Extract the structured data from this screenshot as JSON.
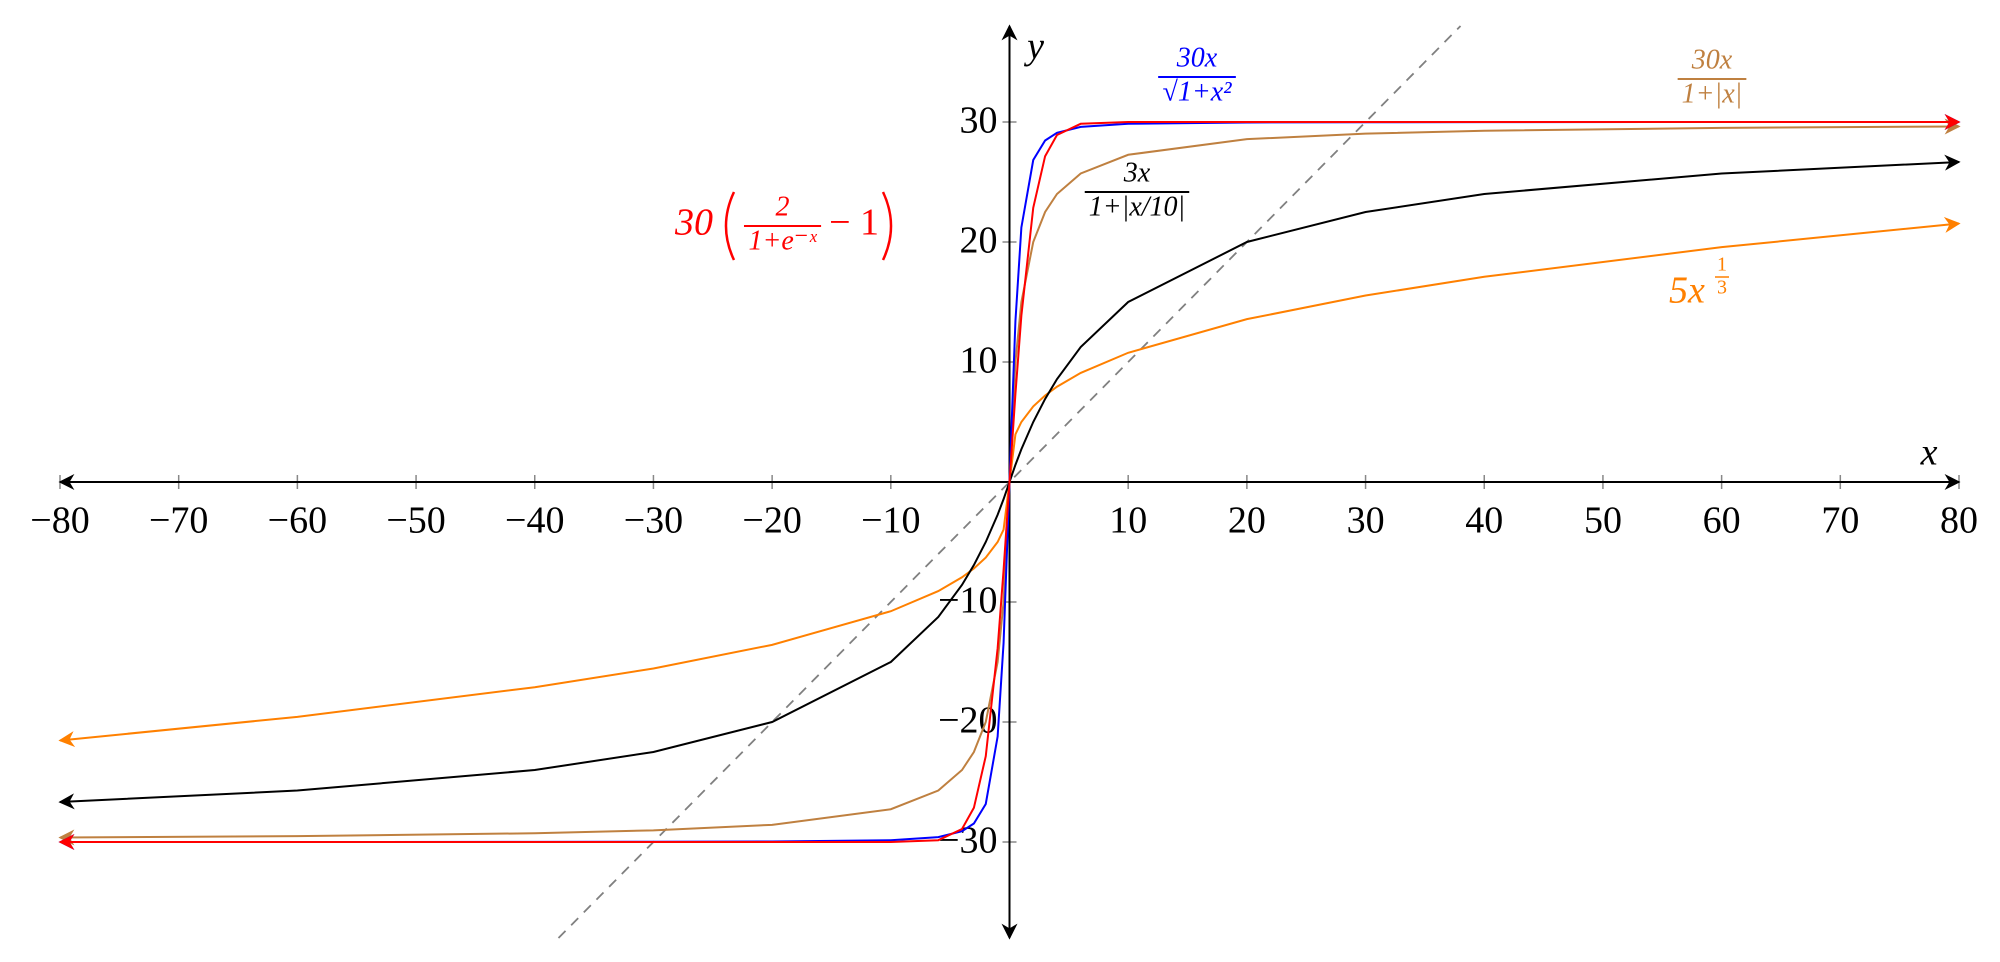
{
  "chart_data": {
    "type": "line",
    "x_label": "x",
    "y_label": "y",
    "xlim": [
      -80,
      80
    ],
    "ylim": [
      -38,
      38
    ],
    "xticks": [
      {
        "value": -80,
        "label": "−80"
      },
      {
        "value": -70,
        "label": "−70"
      },
      {
        "value": -60,
        "label": "−60"
      },
      {
        "value": -50,
        "label": "−50"
      },
      {
        "value": -40,
        "label": "−40"
      },
      {
        "value": -30,
        "label": "−30"
      },
      {
        "value": -20,
        "label": "−20"
      },
      {
        "value": -10,
        "label": "−10"
      },
      10,
      20,
      30,
      40,
      50,
      60,
      70,
      80
    ],
    "yticks": [
      {
        "value": -30,
        "label": "−30"
      },
      {
        "value": -20,
        "label": "−20"
      },
      {
        "value": -10,
        "label": "−10"
      },
      10,
      20,
      30
    ],
    "series": [
      {
        "color": "#808080",
        "dashed": true,
        "x": [
          -38,
          38
        ],
        "values": [
          -38,
          38
        ]
      },
      {
        "color": "#ff8000",
        "label": {
          "prefix": "5x",
          "exp_numerator": "1",
          "exp_denominator": "3"
        },
        "x": [
          -80,
          -60,
          -40,
          -30,
          -20,
          -10,
          -6,
          -4,
          -3,
          -2,
          -1,
          -0.5,
          0,
          0.5,
          1,
          2,
          3,
          4,
          6,
          10,
          20,
          30,
          40,
          60,
          80
        ],
        "values": [
          -21.54,
          -19.57,
          -17.1,
          -15.54,
          -13.57,
          -10.77,
          -9.09,
          -7.94,
          -7.21,
          -6.3,
          -5,
          -3.97,
          0,
          3.97,
          5,
          6.3,
          7.21,
          7.94,
          9.09,
          10.77,
          13.57,
          15.54,
          17.1,
          19.57,
          21.54
        ]
      },
      {
        "color": "#bf8040",
        "label": {
          "numerator": "30x",
          "denominator": "1+|x|"
        },
        "x": [
          -80,
          -60,
          -40,
          -30,
          -20,
          -10,
          -6,
          -4,
          -3,
          -2,
          -1,
          -0.5,
          0,
          0.5,
          1,
          2,
          3,
          4,
          6,
          10,
          20,
          30,
          40,
          60,
          80
        ],
        "values": [
          -29.63,
          -29.51,
          -29.27,
          -29.03,
          -28.57,
          -27.27,
          -25.71,
          -24,
          -22.5,
          -20,
          -15,
          -10,
          0,
          10,
          15,
          20,
          22.5,
          24,
          25.71,
          27.27,
          28.57,
          29.03,
          29.27,
          29.51,
          29.63
        ]
      },
      {
        "color": "#000000",
        "label": {
          "numerator": "3x",
          "denominator": "1+|x/10|"
        },
        "x": [
          -80,
          -60,
          -40,
          -30,
          -20,
          -10,
          -6,
          -4,
          -3,
          -2,
          -1,
          -0.5,
          0,
          0.5,
          1,
          2,
          3,
          4,
          6,
          10,
          20,
          30,
          40,
          60,
          80
        ],
        "values": [
          -26.67,
          -25.71,
          -24,
          -22.5,
          -20,
          -15,
          -11.25,
          -8.57,
          -6.92,
          -5,
          -2.73,
          -1.43,
          0,
          1.43,
          2.73,
          5,
          6.92,
          8.57,
          11.25,
          15,
          20,
          22.5,
          24,
          25.71,
          26.67
        ]
      },
      {
        "color": "#0000ff",
        "label": {
          "numerator": "30x",
          "denominator": "√1+x²"
        },
        "x": [
          -80,
          -60,
          -40,
          -30,
          -20,
          -10,
          -6,
          -4,
          -3,
          -2,
          -1,
          -0.5,
          0,
          0.5,
          1,
          2,
          3,
          4,
          6,
          10,
          20,
          30,
          40,
          60,
          80
        ],
        "values": [
          -30,
          -30,
          -29.99,
          -29.98,
          -29.96,
          -29.85,
          -29.59,
          -29.1,
          -28.46,
          -26.83,
          -21.21,
          -13.42,
          0,
          13.42,
          21.21,
          26.83,
          28.46,
          29.1,
          29.59,
          29.85,
          29.96,
          29.98,
          29.99,
          30,
          30
        ]
      },
      {
        "color": "#ff0000",
        "label": {
          "prefix": "30",
          "numerator": "2",
          "denominator": "1+e⁻ˣ",
          "suffix": "− 1"
        },
        "x": [
          -80,
          -60,
          -40,
          -30,
          -20,
          -10,
          -6,
          -4,
          -3,
          -2,
          -1,
          -0.5,
          0,
          0.5,
          1,
          2,
          3,
          4,
          6,
          10,
          20,
          30,
          40,
          60,
          80
        ],
        "values": [
          -30,
          -30,
          -30,
          -30,
          -30,
          -30,
          -29.85,
          -28.92,
          -27.15,
          -22.85,
          -13.86,
          -7.35,
          0,
          7.35,
          13.86,
          22.85,
          27.15,
          28.92,
          29.85,
          30,
          30,
          30,
          30,
          30,
          30
        ]
      }
    ]
  }
}
